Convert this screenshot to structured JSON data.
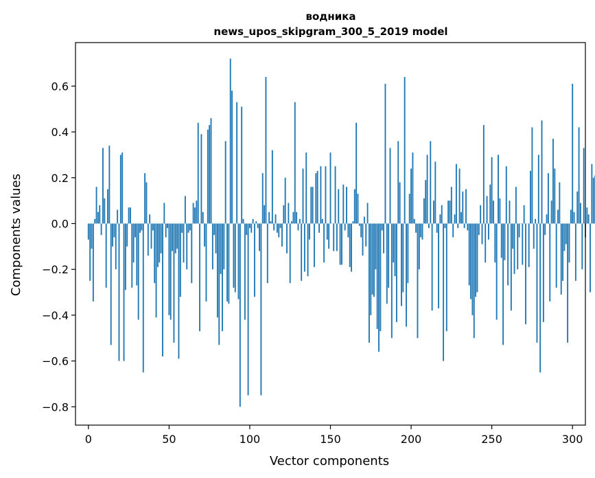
{
  "chart_data": {
    "type": "bar",
    "title_line1": "водника",
    "title_line2": "news_upos_skipgram_300_5_2019 model",
    "xlabel": "Vector components",
    "ylabel": "Components values",
    "xlim": [
      -8,
      308
    ],
    "ylim": [
      -0.88,
      0.79
    ],
    "xticks": [
      0,
      50,
      100,
      150,
      200,
      250,
      300
    ],
    "xtick_labels": [
      "0",
      "50",
      "100",
      "150",
      "200",
      "250",
      "300"
    ],
    "yticks": [
      -0.8,
      -0.6,
      -0.4,
      -0.2,
      0.0,
      0.2,
      0.4,
      0.6
    ],
    "ytick_labels": [
      "−0.8",
      "−0.6",
      "−0.4",
      "−0.2",
      "0.0",
      "0.2",
      "0.4",
      "0.6"
    ],
    "bar_color": "#1f77b4",
    "values": [
      -0.07,
      -0.25,
      -0.11,
      -0.34,
      0.02,
      0.16,
      0.05,
      0.08,
      -0.05,
      0.33,
      0.11,
      -0.28,
      0.15,
      0.34,
      -0.53,
      -0.1,
      -0.06,
      -0.2,
      0.06,
      -0.6,
      0.3,
      0.31,
      -0.6,
      -0.29,
      -0.1,
      0.07,
      0.07,
      -0.28,
      -0.17,
      -0.06,
      -0.27,
      -0.42,
      -0.04,
      -0.03,
      -0.65,
      0.22,
      0.18,
      -0.14,
      0.04,
      -0.11,
      -0.03,
      -0.26,
      -0.41,
      -0.19,
      -0.17,
      -0.13,
      -0.58,
      0.09,
      -0.06,
      -0.02,
      -0.4,
      -0.42,
      -0.12,
      -0.52,
      -0.13,
      -0.11,
      -0.59,
      -0.32,
      -0.04,
      -0.17,
      0.12,
      -0.2,
      -0.04,
      -0.03,
      -0.26,
      0.09,
      0.07,
      0.1,
      0.44,
      -0.47,
      0.39,
      0.05,
      -0.1,
      -0.34,
      0.41,
      0.43,
      0.46,
      -0.2,
      -0.05,
      -0.13,
      -0.41,
      -0.53,
      -0.22,
      -0.47,
      -0.2,
      0.36,
      -0.34,
      -0.35,
      0.72,
      0.58,
      -0.28,
      -0.3,
      0.53,
      -0.33,
      -0.8,
      0.51,
      0.02,
      -0.42,
      -0.05,
      -0.75,
      -0.02,
      -0.04,
      0.02,
      -0.32,
      0.01,
      -0.02,
      -0.12,
      -0.75,
      0.22,
      0.08,
      0.64,
      -0.26,
      0.05,
      0.01,
      0.32,
      -0.03,
      0.04,
      -0.04,
      -0.06,
      -0.02,
      -0.1,
      0.08,
      0.2,
      -0.13,
      0.09,
      -0.26,
      0.01,
      0.05,
      0.53,
      0.05,
      -0.03,
      0.02,
      -0.25,
      0.24,
      -0.21,
      0.31,
      -0.23,
      -0.07,
      0.16,
      0.16,
      -0.19,
      0.22,
      0.23,
      -0.04,
      0.25,
      0.02,
      -0.17,
      0.25,
      -0.07,
      -0.11,
      0.31,
      0.0,
      -0.12,
      0.25,
      -0.12,
      0.15,
      -0.18,
      -0.18,
      0.17,
      -0.03,
      0.16,
      -0.06,
      -0.19,
      -0.21,
      0.01,
      0.15,
      0.44,
      0.13,
      -0.01,
      -0.06,
      -0.14,
      0.03,
      -0.1,
      0.09,
      -0.52,
      -0.4,
      -0.31,
      -0.32,
      -0.2,
      -0.46,
      -0.56,
      -0.47,
      -0.03,
      -0.13,
      0.61,
      -0.35,
      -0.28,
      0.33,
      -0.5,
      -0.17,
      -0.23,
      -0.43,
      0.36,
      0.18,
      -0.36,
      -0.3,
      0.64,
      -0.45,
      -0.26,
      0.13,
      0.24,
      0.31,
      0.02,
      -0.04,
      -0.5,
      -0.2,
      -0.06,
      -0.07,
      0.11,
      0.19,
      0.3,
      -0.02,
      0.36,
      -0.38,
      0.1,
      0.27,
      -0.04,
      -0.37,
      0.04,
      0.08,
      -0.6,
      -0.02,
      -0.47,
      0.1,
      0.1,
      0.16,
      -0.06,
      0.04,
      0.26,
      -0.02,
      0.24,
      0.05,
      0.14,
      -0.02,
      0.15,
      -0.03,
      -0.27,
      -0.33,
      -0.4,
      -0.5,
      -0.32,
      -0.3,
      -0.05,
      0.08,
      -0.09,
      0.43,
      -0.17,
      0.12,
      -0.07,
      0.17,
      0.29,
      0.1,
      -0.17,
      -0.42,
      0.3,
      0.11,
      -0.15,
      -0.53,
      -0.16,
      0.25,
      -0.27,
      0.1,
      -0.38,
      -0.11,
      -0.22,
      0.16,
      -0.2,
      -0.06,
      0.0,
      -0.18,
      0.08,
      -0.44,
      0.0,
      -0.19,
      0.23,
      0.42,
      -0.11,
      0.02,
      -0.52,
      0.3,
      -0.65,
      0.45,
      -0.43,
      -0.05,
      0.04,
      0.22,
      -0.34,
      0.1,
      0.37,
      0.24,
      -0.28,
      0.06,
      0.18,
      -0.31,
      -0.25,
      -0.12,
      -0.09,
      -0.52,
      -0.17,
      0.06,
      0.61,
      0.05,
      -0.25,
      0.14,
      0.42,
      0.09,
      -0.2,
      0.33,
      -0.06,
      0.07,
      0.04,
      -0.3,
      0.26,
      0.2,
      0.21
    ]
  }
}
